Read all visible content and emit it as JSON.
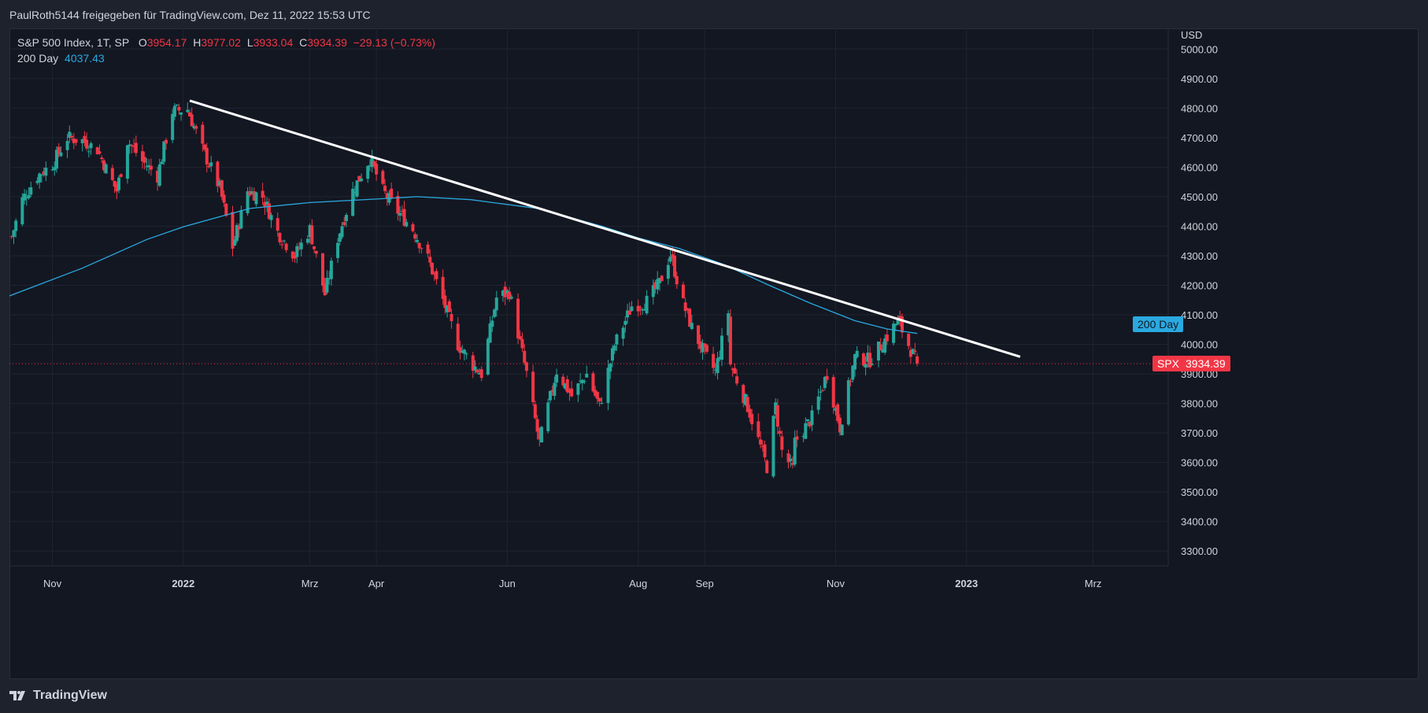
{
  "header": {
    "attribution": "PaulRoth5144 freigegeben für TradingView.com, Dez 11, 2022 15:53 UTC"
  },
  "legend": {
    "symbol": "S&P 500 Index, 1T, SP",
    "o_label": "O",
    "o_value": "3954.17",
    "h_label": "H",
    "h_value": "3977.02",
    "l_label": "L",
    "l_value": "3933.04",
    "c_label": "C",
    "c_value": "3934.39",
    "change": "−29.13 (−0.73%)",
    "ma_label": "200 Day",
    "ma_value": "4037.43"
  },
  "footer": {
    "brand": "TradingView"
  },
  "colors": {
    "up": "#26a69a",
    "down": "#f23645",
    "ma": "#2aa9e0",
    "trendline": "#ffffff",
    "price_line": "#f23645"
  },
  "chart_data": {
    "type": "candlestick",
    "title": "S&P 500 Index, 1T, SP",
    "ylabel": "USD",
    "ylim": [
      3250,
      5070
    ],
    "y_ticks": [
      "5000.00",
      "4900.00",
      "4800.00",
      "4700.00",
      "4600.00",
      "4500.00",
      "4400.00",
      "4300.00",
      "4200.00",
      "4100.00",
      "4000.00",
      "3900.00",
      "3800.00",
      "3700.00",
      "3600.00",
      "3500.00",
      "3400.00",
      "3300.00"
    ],
    "x_ticks": [
      {
        "label": "Nov",
        "date": "2021-11-01",
        "bold": false
      },
      {
        "label": "2022",
        "date": "2022-01-01",
        "bold": true
      },
      {
        "label": "Mrz",
        "date": "2022-03-01",
        "bold": false
      },
      {
        "label": "Apr",
        "date": "2022-04-01",
        "bold": false
      },
      {
        "label": "Jun",
        "date": "2022-06-01",
        "bold": false
      },
      {
        "label": "Aug",
        "date": "2022-08-01",
        "bold": false
      },
      {
        "label": "Sep",
        "date": "2022-09-01",
        "bold": false
      },
      {
        "label": "Nov",
        "date": "2022-11-01",
        "bold": false
      },
      {
        "label": "2023",
        "date": "2023-01-01",
        "bold": true
      },
      {
        "label": "Mrz",
        "date": "2023-03-01",
        "bold": false
      }
    ],
    "x_range": [
      "2021-10-12",
      "2023-04-05"
    ],
    "close_path": [
      [
        "2021-10-13",
        4364
      ],
      [
        "2021-10-18",
        4490
      ],
      [
        "2021-10-25",
        4570
      ],
      [
        "2021-11-01",
        4610
      ],
      [
        "2021-11-08",
        4700
      ],
      [
        "2021-11-15",
        4690
      ],
      [
        "2021-11-22",
        4660
      ],
      [
        "2021-11-26",
        4595
      ],
      [
        "2021-12-01",
        4520
      ],
      [
        "2021-12-06",
        4690
      ],
      [
        "2021-12-13",
        4620
      ],
      [
        "2021-12-20",
        4570
      ],
      [
        "2021-12-27",
        4790
      ],
      [
        "2022-01-03",
        4796
      ],
      [
        "2022-01-10",
        4660
      ],
      [
        "2022-01-18",
        4530
      ],
      [
        "2022-01-24",
        4330
      ],
      [
        "2022-01-31",
        4520
      ],
      [
        "2022-02-07",
        4500
      ],
      [
        "2022-02-14",
        4380
      ],
      [
        "2022-02-22",
        4300
      ],
      [
        "2022-03-01",
        4390
      ],
      [
        "2022-03-08",
        4170
      ],
      [
        "2022-03-14",
        4360
      ],
      [
        "2022-03-21",
        4520
      ],
      [
        "2022-03-29",
        4630
      ],
      [
        "2022-04-04",
        4520
      ],
      [
        "2022-04-11",
        4450
      ],
      [
        "2022-04-18",
        4390
      ],
      [
        "2022-04-25",
        4290
      ],
      [
        "2022-05-02",
        4150
      ],
      [
        "2022-05-09",
        4000
      ],
      [
        "2022-05-16",
        3930
      ],
      [
        "2022-05-20",
        3900
      ],
      [
        "2022-05-27",
        4158
      ],
      [
        "2022-06-02",
        4177
      ],
      [
        "2022-06-10",
        3900
      ],
      [
        "2022-06-16",
        3666
      ],
      [
        "2022-06-24",
        3911
      ],
      [
        "2022-07-01",
        3825
      ],
      [
        "2022-07-08",
        3900
      ],
      [
        "2022-07-14",
        3790
      ],
      [
        "2022-07-21",
        3998
      ],
      [
        "2022-07-29",
        4130
      ],
      [
        "2022-08-05",
        4145
      ],
      [
        "2022-08-11",
        4207
      ],
      [
        "2022-08-16",
        4305
      ],
      [
        "2022-08-22",
        4137
      ],
      [
        "2022-08-26",
        4057
      ],
      [
        "2022-09-01",
        3966
      ],
      [
        "2022-09-06",
        3908
      ],
      [
        "2022-09-12",
        4110
      ],
      [
        "2022-09-13",
        3932
      ],
      [
        "2022-09-21",
        3790
      ],
      [
        "2022-09-30",
        3585
      ],
      [
        "2022-10-04",
        3790
      ],
      [
        "2022-10-07",
        3639
      ],
      [
        "2022-10-12",
        3577
      ],
      [
        "2022-10-13",
        3669
      ],
      [
        "2022-10-21",
        3752
      ],
      [
        "2022-10-28",
        3901
      ],
      [
        "2022-11-03",
        3719
      ],
      [
        "2022-11-10",
        3956
      ],
      [
        "2022-11-17",
        3946
      ],
      [
        "2022-11-25",
        4026
      ],
      [
        "2022-11-30",
        4080
      ],
      [
        "2022-12-05",
        3998
      ],
      [
        "2022-12-09",
        3934
      ]
    ],
    "series": [
      {
        "name": "200 Day",
        "type": "line",
        "points": [
          [
            "2021-10-12",
            4164
          ],
          [
            "2021-11-15",
            4258
          ],
          [
            "2021-12-15",
            4355
          ],
          [
            "2022-01-01",
            4398
          ],
          [
            "2022-02-01",
            4460
          ],
          [
            "2022-03-01",
            4480
          ],
          [
            "2022-04-01",
            4492
          ],
          [
            "2022-04-20",
            4500
          ],
          [
            "2022-05-15",
            4490
          ],
          [
            "2022-06-15",
            4460
          ],
          [
            "2022-07-15",
            4400
          ],
          [
            "2022-08-01",
            4360
          ],
          [
            "2022-08-20",
            4325
          ],
          [
            "2022-09-10",
            4270
          ],
          [
            "2022-10-01",
            4200
          ],
          [
            "2022-10-20",
            4140
          ],
          [
            "2022-11-10",
            4080
          ],
          [
            "2022-11-25",
            4052
          ],
          [
            "2022-12-09",
            4037
          ]
        ]
      },
      {
        "name": "trendline",
        "type": "line",
        "points": [
          [
            "2022-01-04",
            4825
          ],
          [
            "2023-01-26",
            3958
          ]
        ]
      }
    ],
    "last_price": 3934.39,
    "last_price_label": "3934.39",
    "symbol_tag": "SPX",
    "ma_tag": "200 Day",
    "grid": true
  }
}
